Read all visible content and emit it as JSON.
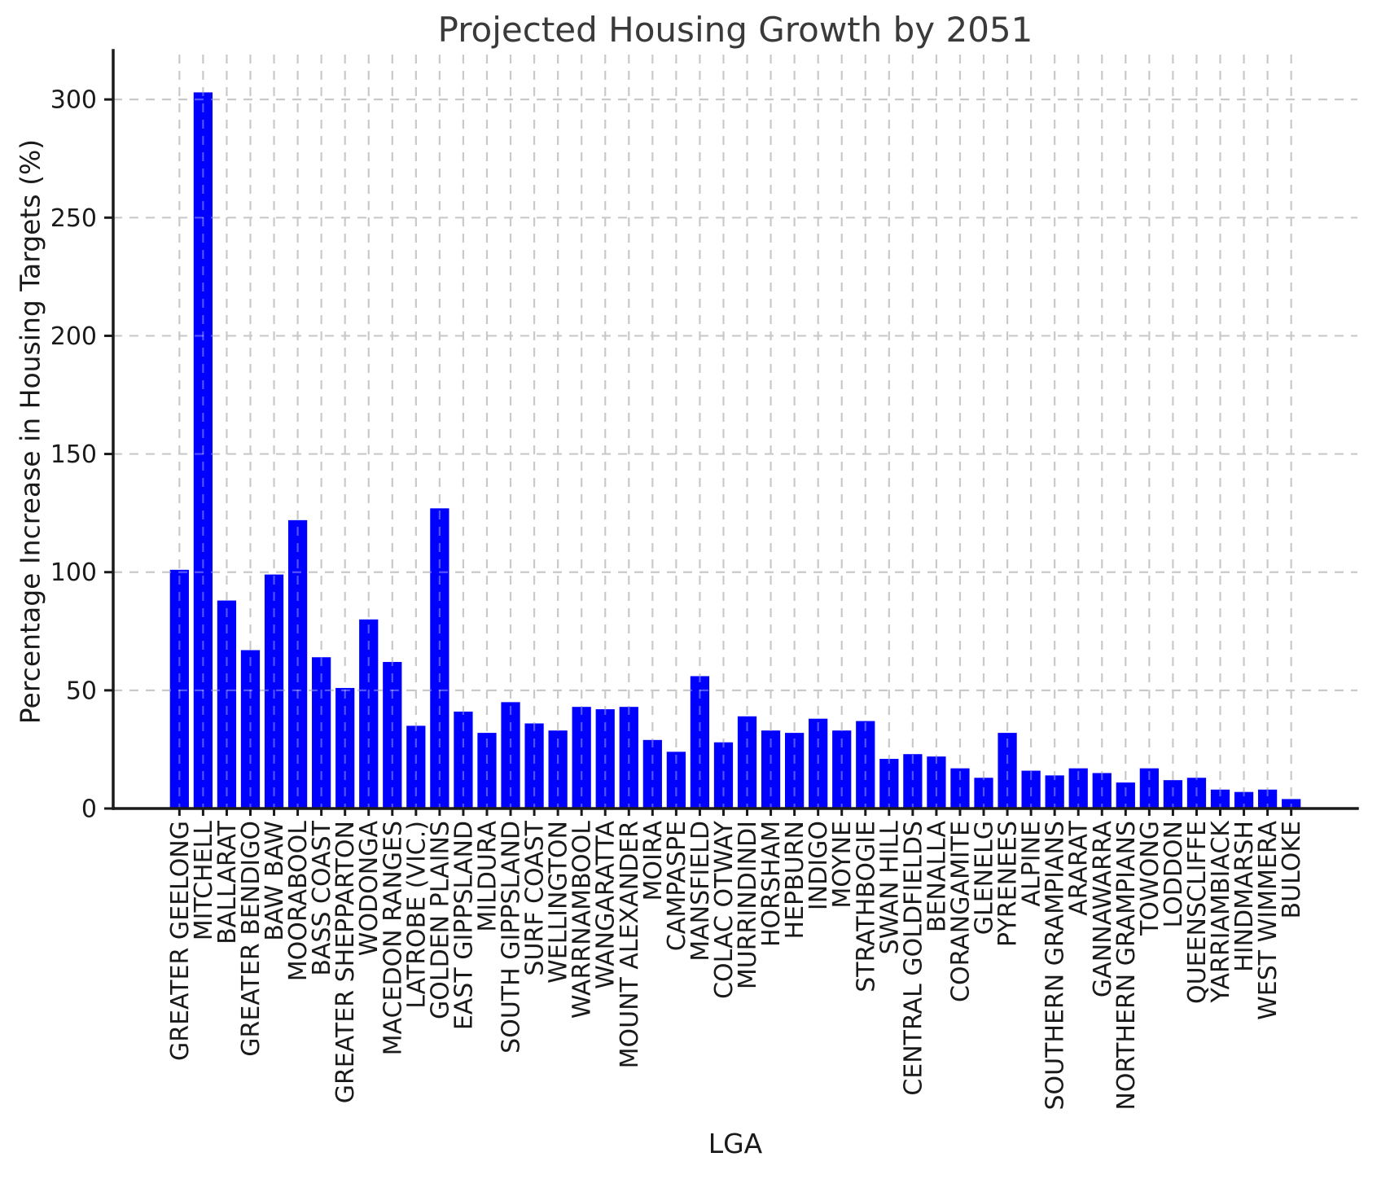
{
  "chart_data": {
    "type": "bar",
    "title": "Projected Housing Growth by 2051",
    "xlabel": "LGA",
    "ylabel": "Percentage Increase in Housing Targets (%)",
    "categories": [
      "GREATER GEELONG",
      "MITCHELL",
      "BALLARAT",
      "GREATER BENDIGO",
      "BAW BAW",
      "MOORABOOL",
      "BASS COAST",
      "GREATER SHEPPARTON",
      "WODONGA",
      "MACEDON RANGES",
      "LATROBE (VIC.)",
      "GOLDEN PLAINS",
      "EAST GIPPSLAND",
      "MILDURA",
      "SOUTH GIPPSLAND",
      "SURF COAST",
      "WELLINGTON",
      "WARRNAMBOOL",
      "WANGARATTA",
      "MOUNT ALEXANDER",
      "MOIRA",
      "CAMPASPE",
      "MANSFIELD",
      "COLAC OTWAY",
      "MURRINDINDI",
      "HORSHAM",
      "HEPBURN",
      "INDIGO",
      "MOYNE",
      "STRATHBOGIE",
      "SWAN HILL",
      "CENTRAL GOLDFIELDS",
      "BENALLA",
      "CORANGAMITE",
      "GLENELG",
      "PYRENEES",
      "ALPINE",
      "SOUTHERN GRAMPIANS",
      "ARARAT",
      "GANNAWARRA",
      "NORTHERN GRAMPIANS",
      "TOWONG",
      "LODDON",
      "QUEENSCLIFFE",
      "YARRIAMBIACK",
      "HINDMARSH",
      "WEST WIMMERA",
      "BULOKE"
    ],
    "values": [
      101,
      303,
      88,
      67,
      99,
      122,
      64,
      51,
      80,
      62,
      35,
      127,
      41,
      32,
      45,
      36,
      33,
      43,
      42,
      43,
      29,
      24,
      56,
      28,
      39,
      33,
      32,
      38,
      33,
      37,
      21,
      23,
      22,
      17,
      13,
      32,
      16,
      14,
      17,
      15,
      11,
      17,
      12,
      13,
      8,
      7,
      8,
      4
    ],
    "yticks": [
      0,
      50,
      100,
      150,
      200,
      250,
      300
    ],
    "ylim": [
      0,
      319
    ],
    "grid": "dashed",
    "legend_position": "none",
    "colors": {
      "bar": "#0000ff",
      "grid": "#c9c9c9",
      "grid_over_bar": "rgba(255,255,255,0.32)",
      "spine": "#1a1a1a",
      "tick_label": "#1a1a1a",
      "title": "#3a3a3a",
      "background": "#ffffff"
    }
  }
}
